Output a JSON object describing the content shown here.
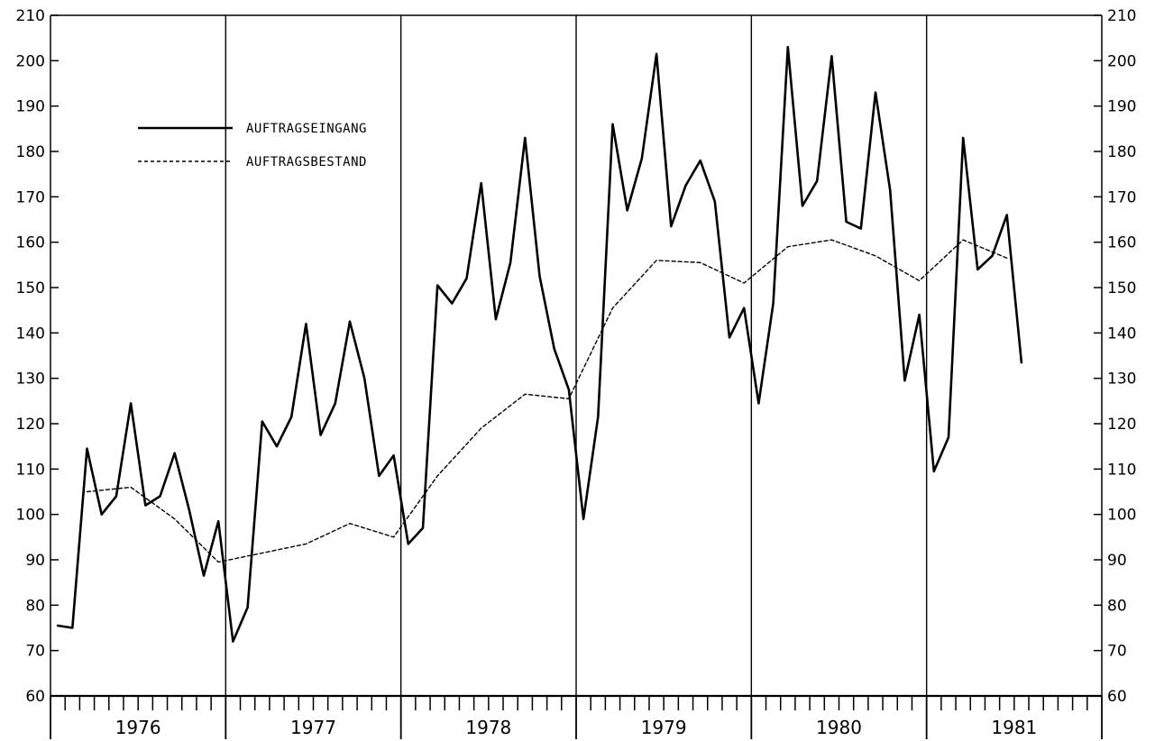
{
  "chart_data": {
    "type": "line",
    "title": "",
    "xlabel": "",
    "ylabel": "",
    "ylim": [
      60,
      210
    ],
    "yticks": [
      60,
      70,
      80,
      90,
      100,
      110,
      120,
      130,
      140,
      150,
      160,
      170,
      180,
      190,
      200,
      210
    ],
    "y_axes": "left-and-right",
    "x_unit": "month",
    "year_labels": [
      "1976",
      "1977",
      "1978",
      "1979",
      "1980",
      "1981"
    ],
    "grid": "vertical lines at year boundaries",
    "legend_position": "top-left",
    "series": [
      {
        "name": "AUFTRAGSEINGANG",
        "style": "solid",
        "x": [
          "1976-01",
          "1976-02",
          "1976-03",
          "1976-04",
          "1976-05",
          "1976-06",
          "1976-07",
          "1976-08",
          "1976-09",
          "1976-10",
          "1976-11",
          "1976-12",
          "1977-01",
          "1977-02",
          "1977-03",
          "1977-04",
          "1977-05",
          "1977-06",
          "1977-07",
          "1977-08",
          "1977-09",
          "1977-10",
          "1977-11",
          "1977-12",
          "1978-01",
          "1978-02",
          "1978-03",
          "1978-04",
          "1978-05",
          "1978-06",
          "1978-07",
          "1978-08",
          "1978-09",
          "1978-10",
          "1978-11",
          "1978-12",
          "1979-01",
          "1979-02",
          "1979-03",
          "1979-04",
          "1979-05",
          "1979-06",
          "1979-07",
          "1979-08",
          "1979-09",
          "1979-10",
          "1979-11",
          "1979-12",
          "1980-01",
          "1980-02",
          "1980-03",
          "1980-04",
          "1980-05",
          "1980-06",
          "1980-07",
          "1980-08",
          "1980-09",
          "1980-10",
          "1980-11",
          "1980-12",
          "1981-01",
          "1981-02",
          "1981-03",
          "1981-04",
          "1981-05",
          "1981-06",
          "1981-07"
        ],
        "values": [
          75.5,
          75,
          114.5,
          100,
          104,
          124.5,
          102,
          104,
          113.5,
          101,
          86.5,
          98.5,
          72,
          79.5,
          120.5,
          115,
          121.5,
          142,
          117.5,
          124.5,
          142.5,
          130,
          108.5,
          113,
          93.5,
          97,
          150.5,
          146.5,
          152,
          173,
          143,
          155.5,
          183,
          152.5,
          136.5,
          127.5,
          99,
          121.5,
          186,
          167,
          178.5,
          201.5,
          163.5,
          172.5,
          178,
          169,
          139,
          145.5,
          124.5,
          146.5,
          203,
          168,
          173.5,
          201,
          164.5,
          163,
          193,
          171.5,
          129.5,
          144,
          109.5,
          117,
          183,
          154,
          157,
          166,
          133.5
        ]
      },
      {
        "name": "AUFTRAGSBESTAND",
        "style": "dashed",
        "x": [
          "1976-03",
          "1976-06",
          "1976-09",
          "1976-12",
          "1977-03",
          "1977-06",
          "1977-09",
          "1977-12",
          "1978-03",
          "1978-06",
          "1978-09",
          "1978-12",
          "1979-03",
          "1979-06",
          "1979-09",
          "1979-12",
          "1980-03",
          "1980-06",
          "1980-09",
          "1980-12",
          "1981-03",
          "1981-06"
        ],
        "values": [
          105,
          106,
          99,
          89.5,
          91.5,
          93.5,
          98,
          95,
          108.5,
          119,
          126.5,
          125.5,
          145.5,
          156,
          155.5,
          151,
          159,
          160.5,
          157,
          151.5,
          160.5,
          156.5
        ]
      }
    ]
  }
}
